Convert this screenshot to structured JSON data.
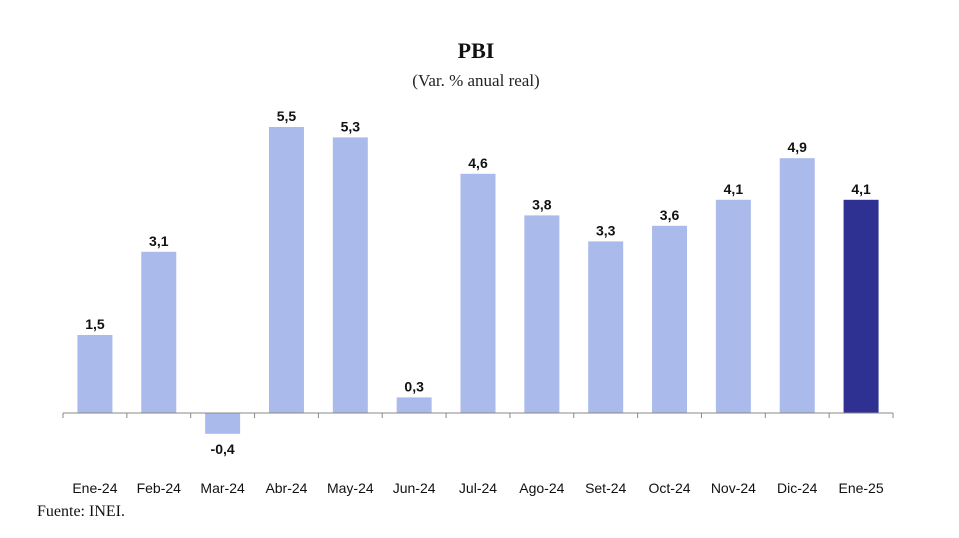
{
  "chart_data": {
    "type": "bar",
    "title": "PBI",
    "subtitle": "(Var. % anual real)",
    "categories": [
      "Ene-24",
      "Feb-24",
      "Mar-24",
      "Abr-24",
      "May-24",
      "Jun-24",
      "Jul-24",
      "Ago-24",
      "Set-24",
      "Oct-24",
      "Nov-24",
      "Dic-24",
      "Ene-25"
    ],
    "values": [
      1.5,
      3.1,
      -0.4,
      5.5,
      5.3,
      0.3,
      4.6,
      3.8,
      3.3,
      3.6,
      4.1,
      4.9,
      4.1
    ],
    "value_labels": [
      "1,5",
      "3,1",
      "-0,4",
      "5,5",
      "5,3",
      "0,3",
      "4,6",
      "3,8",
      "3,3",
      "3,6",
      "4,1",
      "4,9",
      "4,1"
    ],
    "highlight_index": 12,
    "colors": {
      "bar": "#aabaea",
      "highlight": "#2e3192",
      "highlight_label": "#2e3192",
      "axis": "#888888"
    },
    "xlabel": "",
    "ylabel": "",
    "grid": false
  },
  "footer": {
    "source": "Fuente: INEI."
  }
}
